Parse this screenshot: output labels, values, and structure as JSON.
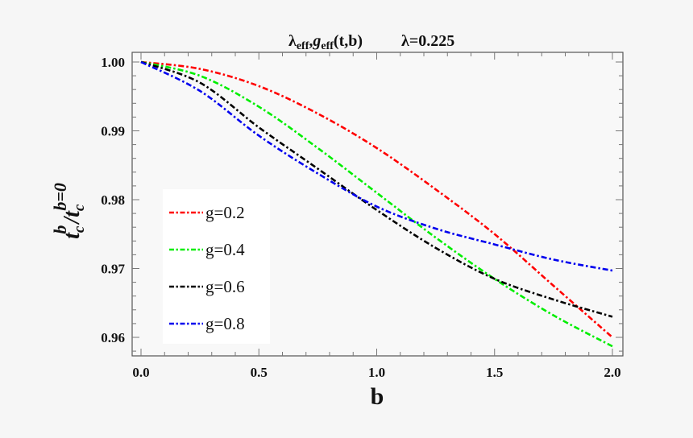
{
  "chart_data": {
    "type": "line",
    "title": "λ_eff, g_eff (t,b)    λ=0.225",
    "title_parts": {
      "main": "λ",
      "sub1": "eff",
      "sep": ",",
      "g": "g",
      "sub2": "eff",
      "args": "(t,b)",
      "lambda_value": "λ=0.225"
    },
    "xlabel": "b",
    "ylabel": "t_c^b / t_c^(b=0)",
    "ylabel_parts": {
      "t1": "t",
      "sub1": "c",
      "sup1": "b",
      "slash": "/",
      "t2": "t",
      "sub2": "c",
      "sup2": "b=0"
    },
    "xlim": [
      0.0,
      2.0
    ],
    "ylim": [
      0.9575,
      1.0015
    ],
    "x_ticks": [
      {
        "value": 0.0,
        "label": "0.0"
      },
      {
        "value": 0.5,
        "label": "0.5"
      },
      {
        "value": 1.0,
        "label": "1.0"
      },
      {
        "value": 1.5,
        "label": "1.5"
      },
      {
        "value": 2.0,
        "label": "2.0"
      }
    ],
    "y_ticks": [
      {
        "value": 1.0,
        "label": "1.00"
      },
      {
        "value": 0.99,
        "label": "0.99"
      },
      {
        "value": 0.98,
        "label": "0.98"
      },
      {
        "value": 0.97,
        "label": "0.97"
      },
      {
        "value": 0.96,
        "label": "0.96"
      }
    ],
    "grid": false,
    "legend_position": "lower-left (inside)",
    "line_style": "dash-dot",
    "x": [
      0.0,
      0.25,
      0.5,
      0.75,
      1.0,
      1.25,
      1.5,
      1.75,
      2.0
    ],
    "series": [
      {
        "name": "g=0.2",
        "color": "#ff0000",
        "values": [
          1.0,
          0.999,
          0.9965,
          0.9925,
          0.9875,
          0.9815,
          0.975,
          0.9675,
          0.96
        ]
      },
      {
        "name": "g=0.4",
        "color": "#00ee00",
        "values": [
          1.0,
          0.998,
          0.9935,
          0.9875,
          0.981,
          0.9745,
          0.9685,
          0.9632,
          0.9587
        ]
      },
      {
        "name": "g=0.6",
        "color": "#000000",
        "values": [
          1.0,
          0.997,
          0.9905,
          0.9845,
          0.9785,
          0.973,
          0.9685,
          0.9655,
          0.963
        ]
      },
      {
        "name": "g=0.8",
        "color": "#0000ee",
        "values": [
          1.0,
          0.9958,
          0.9893,
          0.9838,
          0.979,
          0.9758,
          0.9735,
          0.9713,
          0.9697
        ]
      }
    ]
  }
}
